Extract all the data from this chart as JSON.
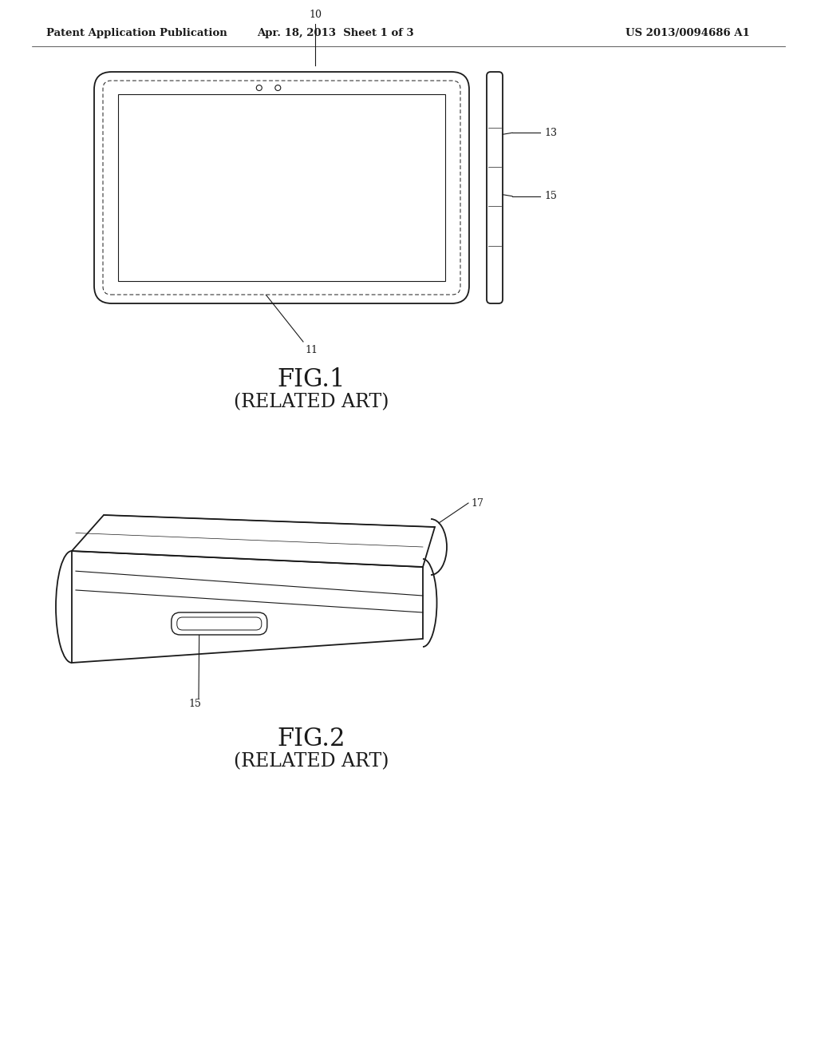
{
  "bg_color": "#ffffff",
  "line_color": "#1a1a1a",
  "header_left": "Patent Application Publication",
  "header_mid": "Apr. 18, 2013  Sheet 1 of 3",
  "header_right": "US 2013/0094686 A1",
  "fig1_label": "FIG.1",
  "fig1_sub": "(RELATED ART)",
  "fig2_label": "FIG.2",
  "fig2_sub": "(RELATED ART)",
  "label_10": "10",
  "label_11": "11",
  "label_13": "13",
  "label_15": "15",
  "label_17": "17"
}
